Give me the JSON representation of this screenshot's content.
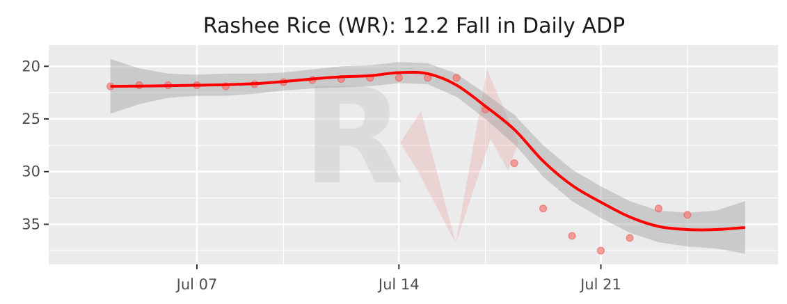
{
  "chart_data": {
    "type": "scatter",
    "title": "Rashee Rice (WR): 12.2 Fall in Daily ADP",
    "xlabel": "",
    "ylabel": "",
    "x_axis": {
      "type": "date",
      "range": [
        "2024-07-03",
        "2024-07-26"
      ],
      "ticks": [
        {
          "date": "2024-07-07",
          "label": "Jul 07"
        },
        {
          "date": "2024-07-14",
          "label": "Jul 14"
        },
        {
          "date": "2024-07-21",
          "label": "Jul 21"
        }
      ],
      "minor_ticks": [
        "2024-07-10",
        "2024-07-17",
        "2024-07-24"
      ]
    },
    "y_axis": {
      "reversed": true,
      "range": [
        18,
        38.8
      ],
      "ticks": [
        20,
        25,
        30,
        35
      ],
      "minor_ticks": [
        22.5,
        27.5,
        32.5,
        37.5
      ]
    },
    "grid": true,
    "series": [
      {
        "kind": "points",
        "color": "#F8766D",
        "points": [
          {
            "x": "2024-07-04",
            "y": 21.9
          },
          {
            "x": "2024-07-05",
            "y": 21.8
          },
          {
            "x": "2024-07-06",
            "y": 21.8
          },
          {
            "x": "2024-07-07",
            "y": 21.8
          },
          {
            "x": "2024-07-08",
            "y": 21.9
          },
          {
            "x": "2024-07-09",
            "y": 21.7
          },
          {
            "x": "2024-07-10",
            "y": 21.5
          },
          {
            "x": "2024-07-11",
            "y": 21.3
          },
          {
            "x": "2024-07-12",
            "y": 21.2
          },
          {
            "x": "2024-07-13",
            "y": 21.1
          },
          {
            "x": "2024-07-14",
            "y": 21.1
          },
          {
            "x": "2024-07-15",
            "y": 21.1
          },
          {
            "x": "2024-07-16",
            "y": 21.1
          },
          {
            "x": "2024-07-17",
            "y": 24.1
          },
          {
            "x": "2024-07-18",
            "y": 29.2
          },
          {
            "x": "2024-07-19",
            "y": 33.5
          },
          {
            "x": "2024-07-20",
            "y": 36.1
          },
          {
            "x": "2024-07-21",
            "y": 37.5
          },
          {
            "x": "2024-07-22",
            "y": 36.3
          },
          {
            "x": "2024-07-23",
            "y": 33.5
          },
          {
            "x": "2024-07-24",
            "y": 34.1
          }
        ]
      },
      {
        "kind": "smooth",
        "color": "#FF0000",
        "points": [
          {
            "x": "2024-07-04",
            "y": 21.9
          },
          {
            "x": "2024-07-05",
            "y": 21.88
          },
          {
            "x": "2024-07-06",
            "y": 21.85
          },
          {
            "x": "2024-07-07",
            "y": 21.8
          },
          {
            "x": "2024-07-08",
            "y": 21.75
          },
          {
            "x": "2024-07-09",
            "y": 21.65
          },
          {
            "x": "2024-07-10",
            "y": 21.45
          },
          {
            "x": "2024-07-11",
            "y": 21.2
          },
          {
            "x": "2024-07-12",
            "y": 21.0
          },
          {
            "x": "2024-07-13",
            "y": 20.9
          },
          {
            "x": "2024-07-14",
            "y": 20.6
          },
          {
            "x": "2024-07-15",
            "y": 20.7
          },
          {
            "x": "2024-07-16",
            "y": 21.8
          },
          {
            "x": "2024-07-17",
            "y": 23.8
          },
          {
            "x": "2024-07-18",
            "y": 26.0
          },
          {
            "x": "2024-07-19",
            "y": 29.0
          },
          {
            "x": "2024-07-20",
            "y": 31.3
          },
          {
            "x": "2024-07-21",
            "y": 32.9
          },
          {
            "x": "2024-07-22",
            "y": 34.3
          },
          {
            "x": "2024-07-23",
            "y": 35.2
          },
          {
            "x": "2024-07-24",
            "y": 35.5
          },
          {
            "x": "2024-07-25",
            "y": 35.5
          },
          {
            "x": "2024-07-26",
            "y": 35.3
          }
        ],
        "ci_upper": [
          24.5,
          23.6,
          23.0,
          22.8,
          22.8,
          22.6,
          22.3,
          22.1,
          22.0,
          21.9,
          21.6,
          21.7,
          22.9,
          25.0,
          27.4,
          30.5,
          32.8,
          34.4,
          35.8,
          36.7,
          37.1,
          37.3,
          37.8
        ],
        "ci_lower": [
          19.3,
          20.2,
          20.7,
          20.8,
          20.7,
          20.7,
          20.6,
          20.3,
          20.0,
          19.9,
          19.6,
          19.7,
          20.7,
          22.6,
          24.6,
          27.5,
          29.8,
          31.4,
          32.8,
          33.7,
          33.9,
          33.7,
          32.8
        ]
      }
    ],
    "colors": {
      "panel": "#EBEBEB",
      "grid": "#FFFFFF",
      "band": "#999999",
      "watermark_gray": "#C8C8C8",
      "watermark_red": "#E8A0A0"
    }
  },
  "watermark": {
    "icon": "rv-logo-watermark",
    "text": "R"
  }
}
